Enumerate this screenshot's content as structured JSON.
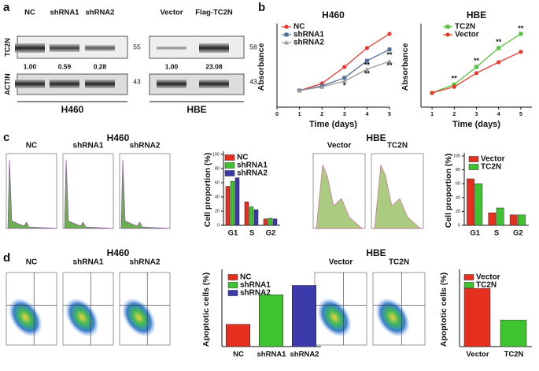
{
  "panel_labels": [
    "a",
    "b",
    "c",
    "d"
  ],
  "blots": [
    {
      "group": "H460",
      "lanes": [
        "NC",
        "shRNA1",
        "shRNA2"
      ],
      "proteins": [
        "TC2N",
        "ACTIN"
      ],
      "quantification": [
        "1.00",
        "0.59",
        "0.28"
      ],
      "markers": [
        "55",
        "43"
      ]
    },
    {
      "group": "HBE",
      "lanes": [
        "Vector",
        "Flag-TC2N"
      ],
      "quantification": [
        "1.00",
        "23.08"
      ],
      "markers": [
        "58",
        "43"
      ]
    }
  ],
  "cell_cycle_plots": [
    {
      "group": "H460",
      "samples": [
        "NC",
        "shRNA1",
        "shRNA2"
      ]
    },
    {
      "group": "HBE",
      "samples": [
        "Vector",
        "TC2N"
      ]
    }
  ],
  "apoptosis_plots": [
    {
      "group": "H460",
      "samples": [
        "NC",
        "shRNA1",
        "shRNA2"
      ]
    },
    {
      "group": "HBE",
      "samples": [
        "Vector",
        "TC2N"
      ]
    }
  ],
  "chart_data": [
    {
      "type": "line",
      "title": "H460",
      "x_label": "Time (days)",
      "y_label": "Absorbance",
      "x": [
        1,
        2,
        3,
        4,
        5
      ],
      "xlim": [
        0,
        5
      ],
      "xticks": [
        0,
        1,
        2,
        3,
        4,
        5
      ],
      "ylim": [
        0,
        1.7
      ],
      "legend": "top-left",
      "series": [
        {
          "name": "NC",
          "color": "#e8382f",
          "marker": "circle",
          "values": [
            0.35,
            0.5,
            0.85,
            1.25,
            1.55
          ]
        },
        {
          "name": "shRNA1",
          "color": "#4f6f9a",
          "marker": "square",
          "values": [
            0.35,
            0.45,
            0.62,
            0.98,
            1.22
          ]
        },
        {
          "name": "shRNA2",
          "color": "#9a9a9a",
          "marker": "triangle",
          "values": [
            0.35,
            0.43,
            0.55,
            0.8,
            0.97
          ]
        }
      ],
      "annotations": [
        {
          "text": "*",
          "x": 3,
          "y": 0.45
        },
        {
          "text": "**",
          "x": 4,
          "y": 0.88
        },
        {
          "text": "**",
          "x": 4,
          "y": 0.7
        },
        {
          "text": "**",
          "x": 5,
          "y": 1.1
        },
        {
          "text": "**",
          "x": 5,
          "y": 0.87
        }
      ]
    },
    {
      "type": "line",
      "title": "HBE",
      "x_label": "Time (days)",
      "y_label": "Absorbance",
      "x": [
        1,
        2,
        3,
        4,
        5
      ],
      "xlim": [
        0.5,
        5.5
      ],
      "xticks": [
        1,
        2,
        3,
        4,
        5
      ],
      "ylim": [
        0,
        1.7
      ],
      "legend": "top-left",
      "series": [
        {
          "name": "TC2N",
          "color": "#55c03a",
          "marker": "square",
          "values": [
            0.3,
            0.48,
            0.85,
            1.25,
            1.55
          ]
        },
        {
          "name": "Vector",
          "color": "#e8382f",
          "marker": "circle",
          "values": [
            0.3,
            0.43,
            0.72,
            0.95,
            1.17
          ]
        }
      ],
      "annotations": [
        {
          "text": "**",
          "x": 2,
          "y": 0.6
        },
        {
          "text": "**",
          "x": 3,
          "y": 0.97
        },
        {
          "text": "**",
          "x": 4,
          "y": 1.37
        },
        {
          "text": "**",
          "x": 5,
          "y": 1.66
        }
      ]
    },
    {
      "type": "bar",
      "y_label": "Cell proportion (%)",
      "categories": [
        "G1",
        "S",
        "G2"
      ],
      "ylim": [
        0,
        100
      ],
      "yticks": [
        0,
        20,
        40,
        60,
        80,
        100
      ],
      "legend": "top-left",
      "series": [
        {
          "name": "NC",
          "color": "#e53020",
          "values": [
            55,
            33,
            9
          ]
        },
        {
          "name": "shRNA1",
          "color": "#3ec42e",
          "values": [
            62,
            26,
            10
          ]
        },
        {
          "name": "shRNA2",
          "color": "#3a3aaa",
          "values": [
            67,
            22,
            9
          ]
        }
      ]
    },
    {
      "type": "bar",
      "y_label": "Cell proportion (%)",
      "categories": [
        "G1",
        "S",
        "G2"
      ],
      "ylim": [
        0,
        100
      ],
      "yticks": [
        0,
        20,
        40,
        60,
        80,
        100
      ],
      "legend": "top-right",
      "series": [
        {
          "name": "Vector",
          "color": "#e53020",
          "values": [
            67,
            18,
            15
          ]
        },
        {
          "name": "TC2N",
          "color": "#3ec42e",
          "values": [
            60,
            25,
            15
          ]
        }
      ]
    },
    {
      "type": "bar",
      "y_label": "Apoptotic cells (%)",
      "categories": [
        "NC",
        "shRNA1",
        "shRNA2"
      ],
      "ylim": [
        0,
        20
      ],
      "legend": "top-left",
      "series": [
        {
          "name": "NC",
          "color": "#e53020",
          "values": [
            6,
            null,
            null
          ]
        },
        {
          "name": "shRNA1",
          "color": "#3ec42e",
          "values": [
            null,
            14,
            null
          ]
        },
        {
          "name": "shRNA2",
          "color": "#3a3aaa",
          "values": [
            null,
            null,
            16.5
          ]
        }
      ]
    },
    {
      "type": "bar",
      "y_label": "Apoptotic cells (%)",
      "categories": [
        "Vector",
        "TC2N"
      ],
      "ylim": [
        0,
        7
      ],
      "legend": "top-right",
      "series": [
        {
          "name": "Vector",
          "color": "#e53020",
          "values": [
            5.5,
            null
          ]
        },
        {
          "name": "TC2N",
          "color": "#3ec42e",
          "values": [
            null,
            2.5
          ]
        }
      ]
    }
  ]
}
